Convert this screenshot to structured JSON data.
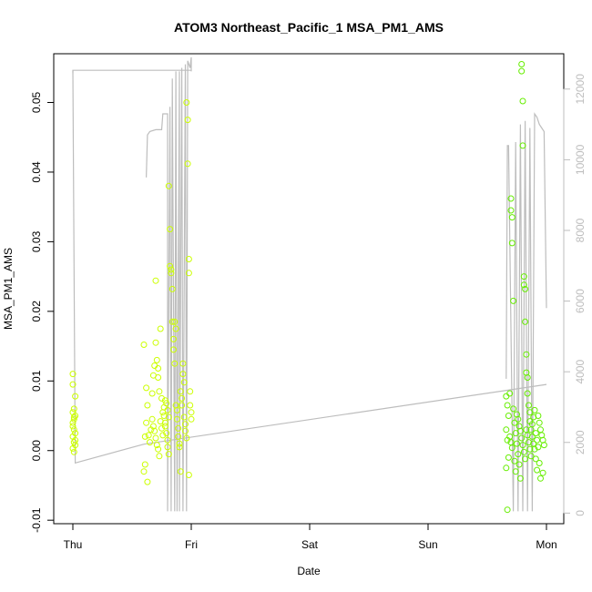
{
  "chart_data": {
    "type": "scatter",
    "title": "ATOM3 Northeast_Pacific_1 MSA_PM1_AMS",
    "xlabel": "Date",
    "ylabel": "MSA_PM1_AMS",
    "x_ticks": [
      "Thu",
      "Fri",
      "Sat",
      "Sun",
      "Mon"
    ],
    "xlim": [
      -0.2,
      4.2
    ],
    "ylim": [
      -0.0105,
      0.057
    ],
    "y_ticks": [
      -0.01,
      0.0,
      0.01,
      0.02,
      0.03,
      0.04,
      0.05
    ],
    "y_tick_labels": [
      "-0.01",
      "0.00",
      "0.01",
      "0.02",
      "0.03",
      "0.04",
      "0.05"
    ],
    "y2lim": [
      -300,
      13000
    ],
    "y2_ticks": [
      0,
      2000,
      4000,
      6000,
      8000,
      10000,
      12000
    ],
    "y2_tick_labels": [
      "0",
      "2000",
      "4000",
      "6000",
      "8000",
      "10000",
      "12000"
    ],
    "grid": false,
    "colors": {
      "group_fri": "#ccff00",
      "group_mon": "#66ee00",
      "secondary_line": "#bdbdbd",
      "axis": "#000000"
    },
    "secondary_series": {
      "style": "line",
      "points": [
        [
          0.0,
          12450
        ],
        [
          0.0,
          12530
        ],
        [
          1.0,
          12530
        ],
        [
          1.0,
          12530
        ],
        [
          0.0,
          12530
        ],
        [
          0.0,
          1420
        ],
        [
          1.0,
          2750
        ],
        [
          4.0,
          3600
        ],
        [
          1.0,
          1420
        ]
      ],
      "segments": [
        {
          "x": [
            0.0,
            0.0,
            1.0
          ],
          "y": [
            12450,
            12530,
            12530
          ]
        },
        {
          "x": [
            0.0,
            0.02,
            0.6
          ],
          "y": [
            12530,
            1420,
            1950
          ]
        },
        {
          "x": [
            0.6,
            4.0
          ],
          "y": [
            1950,
            3640
          ]
        },
        {
          "x": [
            0.62,
            0.63,
            0.65,
            0.7,
            0.75,
            0.76,
            0.78,
            0.8,
            0.8,
            0.82,
            0.83,
            0.84,
            0.86,
            0.87,
            0.88,
            0.9,
            0.9,
            0.92,
            0.93,
            0.95,
            0.96,
            0.97,
            0.99,
            1.0,
            1.0
          ],
          "y": [
            9500,
            10700,
            10800,
            10850,
            10850,
            11300,
            11300,
            11300,
            50,
            11500,
            50,
            12300,
            50,
            12500,
            50,
            12500,
            50,
            12600,
            50,
            12700,
            50,
            12800,
            12600,
            12900,
            12500
          ]
        },
        {
          "x": [
            3.66,
            3.67,
            3.68,
            3.72,
            3.74,
            3.76,
            3.78,
            3.8,
            3.82,
            3.84,
            3.86,
            3.88,
            3.9,
            3.92,
            3.94,
            3.96,
            3.98,
            4.0
          ],
          "y": [
            3800,
            10400,
            10400,
            50,
            10500,
            50,
            11000,
            50,
            11100,
            50,
            10900,
            50,
            11300,
            11200,
            11000,
            10900,
            10800,
            5800
          ]
        }
      ]
    },
    "series": [
      {
        "group": "Thu",
        "color": "#ccff00",
        "points": [
          [
            0.0,
            0.011
          ],
          [
            0.0,
            0.0095
          ],
          [
            0.01,
            0.006
          ],
          [
            0.02,
            0.0078
          ],
          [
            0.0,
            0.0055
          ],
          [
            0.01,
            0.0045
          ],
          [
            0.02,
            0.005
          ],
          [
            0.0,
            0.0035
          ],
          [
            0.01,
            0.003
          ],
          [
            0.02,
            0.0025
          ],
          [
            0.0,
            0.002
          ],
          [
            0.01,
            0.0012
          ],
          [
            0.02,
            0.0008
          ],
          [
            0.0,
            0.0003
          ],
          [
            0.01,
            -0.0002
          ],
          [
            0.02,
            0.0015
          ],
          [
            0.0,
            0.004
          ],
          [
            0.01,
            0.0048
          ]
        ]
      },
      {
        "group": "Fri",
        "color": "#ccff00",
        "points": [
          [
            0.6,
            0.0152
          ],
          [
            0.62,
            0.009
          ],
          [
            0.63,
            0.0065
          ],
          [
            0.62,
            0.004
          ],
          [
            0.61,
            0.002
          ],
          [
            0.6,
            -0.003
          ],
          [
            0.61,
            -0.002
          ],
          [
            0.63,
            -0.0045
          ],
          [
            0.64,
            0.0022
          ],
          [
            0.65,
            0.0012
          ],
          [
            0.66,
            0.003
          ],
          [
            0.67,
            0.0082
          ],
          [
            0.68,
            0.0108
          ],
          [
            0.69,
            0.0122
          ],
          [
            0.7,
            0.0244
          ],
          [
            0.7,
            0.0155
          ],
          [
            0.71,
            0.013
          ],
          [
            0.72,
            0.0118
          ],
          [
            0.72,
            0.0105
          ],
          [
            0.73,
            0.0085
          ],
          [
            0.74,
            0.0175
          ],
          [
            0.75,
            0.0075
          ],
          [
            0.76,
            0.0055
          ],
          [
            0.77,
            0.005
          ],
          [
            0.78,
            0.004
          ],
          [
            0.78,
            0.0035
          ],
          [
            0.79,
            0.0025
          ],
          [
            0.8,
            0.0015
          ],
          [
            0.8,
            0.0005
          ],
          [
            0.81,
            -0.0005
          ],
          [
            0.81,
            0.038
          ],
          [
            0.82,
            0.0318
          ],
          [
            0.82,
            0.0265
          ],
          [
            0.83,
            0.026
          ],
          [
            0.83,
            0.0255
          ],
          [
            0.84,
            0.0232
          ],
          [
            0.84,
            0.0185
          ],
          [
            0.85,
            0.016
          ],
          [
            0.85,
            0.0145
          ],
          [
            0.86,
            0.0125
          ],
          [
            0.86,
            0.0185
          ],
          [
            0.87,
            0.0175
          ],
          [
            0.87,
            0.0065
          ],
          [
            0.88,
            0.0058
          ],
          [
            0.88,
            0.0045
          ],
          [
            0.89,
            0.0032
          ],
          [
            0.89,
            0.002
          ],
          [
            0.9,
            0.001
          ],
          [
            0.9,
            0.0005
          ],
          [
            0.91,
            -0.003
          ],
          [
            0.91,
            0.0085
          ],
          [
            0.92,
            0.0075
          ],
          [
            0.92,
            0.0065
          ],
          [
            0.93,
            0.0125
          ],
          [
            0.93,
            0.011
          ],
          [
            0.94,
            0.0098
          ],
          [
            0.94,
            0.0048
          ],
          [
            0.95,
            0.0038
          ],
          [
            0.95,
            0.0028
          ],
          [
            0.96,
            0.0018
          ],
          [
            0.96,
            0.05
          ],
          [
            0.97,
            0.0475
          ],
          [
            0.97,
            0.0412
          ],
          [
            0.98,
            0.0275
          ],
          [
            0.98,
            0.0255
          ],
          [
            0.99,
            0.0085
          ],
          [
            0.99,
            0.0065
          ],
          [
            1.0,
            0.0055
          ],
          [
            1.0,
            0.0045
          ],
          [
            0.98,
            -0.0035
          ],
          [
            0.67,
            0.0045
          ],
          [
            0.68,
            0.0035
          ],
          [
            0.69,
            0.0028
          ],
          [
            0.7,
            0.0018
          ],
          [
            0.71,
            0.0008
          ],
          [
            0.72,
            0.0002
          ],
          [
            0.73,
            -0.0008
          ],
          [
            0.74,
            0.0042
          ],
          [
            0.75,
            0.0032
          ],
          [
            0.76,
            0.0022
          ],
          [
            0.77,
            0.0062
          ],
          [
            0.78,
            0.0072
          ],
          [
            0.79,
            0.0068
          ],
          [
            0.8,
            0.0058
          ],
          [
            0.81,
            0.0048
          ]
        ]
      },
      {
        "group": "Mon",
        "color": "#66ee00",
        "points": [
          [
            3.66,
            0.0078
          ],
          [
            3.67,
            0.0065
          ],
          [
            3.68,
            0.005
          ],
          [
            3.66,
            0.003
          ],
          [
            3.67,
            0.0015
          ],
          [
            3.68,
            -0.001
          ],
          [
            3.66,
            -0.0025
          ],
          [
            3.67,
            -0.0085
          ],
          [
            3.69,
            0.0082
          ],
          [
            3.7,
            0.0362
          ],
          [
            3.7,
            0.0345
          ],
          [
            3.71,
            0.0335
          ],
          [
            3.71,
            0.0298
          ],
          [
            3.72,
            0.0215
          ],
          [
            3.72,
            0.006
          ],
          [
            3.73,
            0.004
          ],
          [
            3.74,
            0.0025
          ],
          [
            3.75,
            0.001
          ],
          [
            3.76,
            -0.0005
          ],
          [
            3.77,
            -0.002
          ],
          [
            3.78,
            -0.004
          ],
          [
            3.79,
            0.0555
          ],
          [
            3.79,
            0.0545
          ],
          [
            3.8,
            0.0502
          ],
          [
            3.8,
            0.0438
          ],
          [
            3.81,
            0.025
          ],
          [
            3.81,
            0.0238
          ],
          [
            3.82,
            0.0232
          ],
          [
            3.82,
            0.0185
          ],
          [
            3.83,
            0.0138
          ],
          [
            3.83,
            0.0112
          ],
          [
            3.84,
            0.0105
          ],
          [
            3.84,
            0.0082
          ],
          [
            3.85,
            0.0065
          ],
          [
            3.86,
            0.0055
          ],
          [
            3.86,
            0.0042
          ],
          [
            3.87,
            0.003
          ],
          [
            3.88,
            0.002
          ],
          [
            3.89,
            0.001
          ],
          [
            3.9,
            0.0002
          ],
          [
            3.91,
            -0.0012
          ],
          [
            3.92,
            -0.0028
          ],
          [
            3.93,
            0.005
          ],
          [
            3.94,
            0.004
          ],
          [
            3.95,
            0.003
          ],
          [
            3.96,
            0.0022
          ],
          [
            3.97,
            0.0015
          ],
          [
            3.98,
            0.0008
          ],
          [
            3.95,
            -0.004
          ],
          [
            3.97,
            -0.0032
          ],
          [
            3.69,
            0.002
          ],
          [
            3.7,
            0.0012
          ],
          [
            3.71,
            0.0004
          ],
          [
            3.73,
            -0.0015
          ],
          [
            3.74,
            -0.003
          ],
          [
            3.75,
            0.0052
          ],
          [
            3.76,
            0.0045
          ],
          [
            3.77,
            0.0035
          ],
          [
            3.78,
            0.0028
          ],
          [
            3.79,
            0.0018
          ],
          [
            3.8,
            0.0008
          ],
          [
            3.81,
            -0.0002
          ],
          [
            3.82,
            -0.0012
          ],
          [
            3.83,
            0.003
          ],
          [
            3.84,
            0.0022
          ],
          [
            3.85,
            0.0012
          ],
          [
            3.86,
            0.0002
          ],
          [
            3.87,
            -0.0008
          ],
          [
            3.88,
            0.0038
          ],
          [
            3.89,
            0.0048
          ],
          [
            3.9,
            0.0058
          ],
          [
            3.91,
            0.0025
          ],
          [
            3.92,
            0.0015
          ],
          [
            3.93,
            0.0005
          ],
          [
            3.94,
            -0.0018
          ]
        ]
      }
    ]
  }
}
